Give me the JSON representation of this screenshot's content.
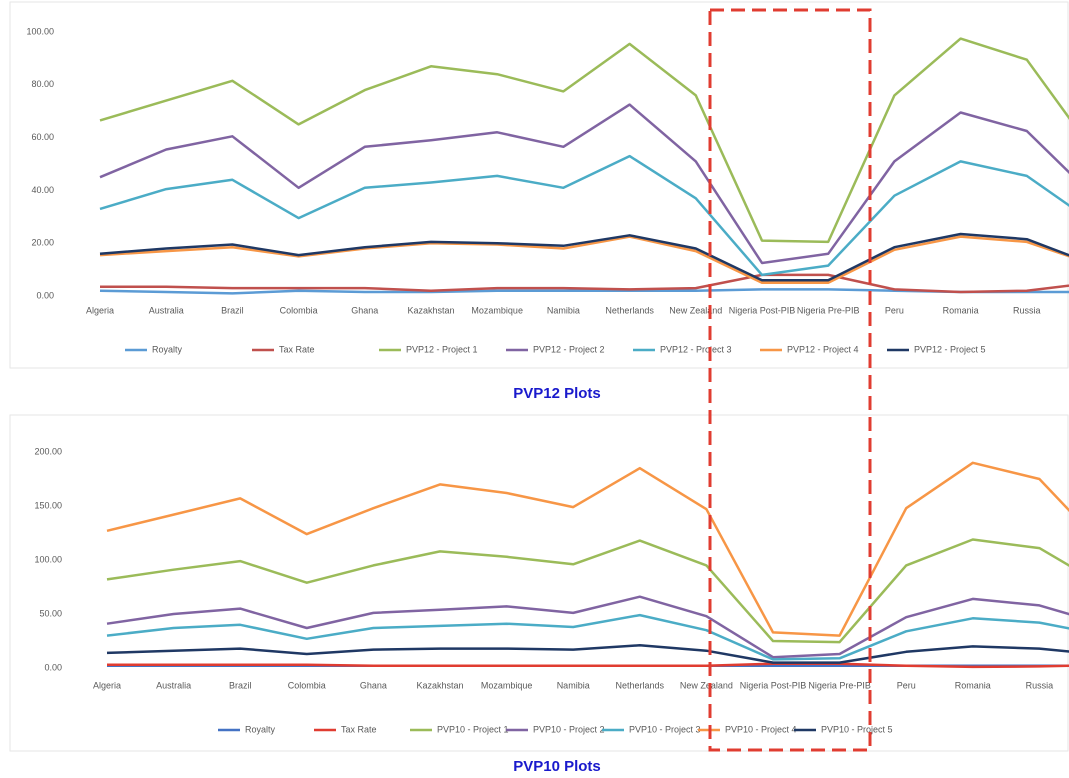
{
  "chart_data": [
    {
      "type": "line",
      "title": "PVP12 Plots",
      "categories": [
        "Algeria",
        "Australia",
        "Brazil",
        "Colombia",
        "Ghana",
        "Kazakhstan",
        "Mozambique",
        "Namibia",
        "Netherlands",
        "New Zealand",
        "Nigeria Post-PIB",
        "Nigeria Pre-PIB",
        "Peru",
        "Romania",
        "Russia",
        null
      ],
      "ylim": [
        0,
        100
      ],
      "yticks": [
        {
          "value": 0,
          "label": "0.00"
        },
        {
          "value": 20,
          "label": "20.00"
        },
        {
          "value": 40,
          "label": "40.00"
        },
        {
          "value": 60,
          "label": "60.00"
        },
        {
          "value": 80,
          "label": "80.00"
        },
        {
          "value": 100,
          "label": "100.00"
        }
      ],
      "grid": false,
      "series": [
        {
          "name": "Royalty",
          "color": "#5b9bd5",
          "values": [
            2,
            1.5,
            1,
            2,
            1.5,
            1.5,
            2,
            2,
            2,
            2,
            2.5,
            2.5,
            2,
            1.5,
            1.5,
            1.5
          ]
        },
        {
          "name": "Tax Rate",
          "color": "#c0504d",
          "values": [
            3.5,
            3.5,
            3,
            3,
            3,
            2,
            3,
            3,
            2.5,
            3,
            8,
            8,
            2.5,
            1.5,
            2,
            5
          ]
        },
        {
          "name": "PVP12 - Project 1",
          "color": "#9bbb59",
          "values": [
            66.5,
            74,
            81.5,
            65,
            78,
            87,
            84,
            77.5,
            95.5,
            76,
            21,
            20.5,
            76,
            97.5,
            89.5,
            55
          ]
        },
        {
          "name": "PVP12 - Project 2",
          "color": "#8064a2",
          "values": [
            45,
            55.5,
            60.5,
            41,
            56.5,
            59,
            62,
            56.5,
            72.5,
            51,
            12.5,
            16,
            51,
            69.5,
            62.5,
            38
          ]
        },
        {
          "name": "PVP12 - Project 3",
          "color": "#4bacc6",
          "values": [
            33,
            40.5,
            44,
            29.5,
            41,
            43,
            45.5,
            41,
            53,
            37,
            8,
            11.5,
            38,
            51,
            45.5,
            28
          ]
        },
        {
          "name": "PVP12 - Project 4",
          "color": "#f79646",
          "values": [
            15.5,
            17,
            18.5,
            15,
            18,
            20,
            19.5,
            18,
            22.5,
            17,
            5,
            5,
            17.5,
            22.5,
            20.5,
            12
          ]
        },
        {
          "name": "PVP12 - Project 5",
          "color": "#1f3864",
          "values": [
            16,
            18,
            19.5,
            15.5,
            18.5,
            20.5,
            20,
            19,
            23,
            18,
            6,
            6,
            18.5,
            23.5,
            21.5,
            12
          ]
        }
      ]
    },
    {
      "type": "line",
      "title": "PVP10 Plots",
      "categories": [
        "Algeria",
        "Australia",
        "Brazil",
        "Colombia",
        "Ghana",
        "Kazakhstan",
        "Mozambique",
        "Namibia",
        "Netherlands",
        "New Zealand",
        "Nigeria Post-PIB",
        "Nigeria Pre-PIB",
        "Peru",
        "Romania",
        "Russia",
        null
      ],
      "ylim": [
        0,
        200
      ],
      "yticks": [
        {
          "value": 0,
          "label": "0.00"
        },
        {
          "value": 50,
          "label": "50.00"
        },
        {
          "value": 100,
          "label": "100.00"
        },
        {
          "value": 150,
          "label": "150.00"
        },
        {
          "value": 200,
          "label": "200.00"
        }
      ],
      "grid": false,
      "series": [
        {
          "name": "Royalty",
          "color": "#4472c4",
          "values": [
            2,
            2,
            2,
            2,
            2,
            2,
            2,
            2,
            2,
            2,
            2,
            2,
            2,
            2,
            2,
            2
          ]
        },
        {
          "name": "Tax Rate",
          "color": "#e03c31",
          "values": [
            3,
            3,
            3,
            3,
            2,
            2,
            2,
            2,
            2,
            2,
            4,
            4,
            2,
            1,
            1.5,
            3
          ]
        },
        {
          "name": "PVP10 - Project 1",
          "color": "#9bbb59",
          "values": [
            82,
            91,
            99,
            79,
            95,
            108,
            103,
            96,
            118,
            95,
            25,
            24,
            95,
            119,
            111,
            75
          ]
        },
        {
          "name": "PVP10 - Project 2",
          "color": "#8064a2",
          "values": [
            41,
            50,
            55,
            37,
            51,
            54,
            57,
            51,
            66,
            48,
            10,
            13,
            47,
            64,
            58,
            40
          ]
        },
        {
          "name": "PVP10 - Project 3",
          "color": "#4bacc6",
          "values": [
            30,
            37,
            40,
            27,
            37,
            39,
            41,
            38,
            49,
            35,
            8,
            9,
            34,
            46,
            42,
            30
          ]
        },
        {
          "name": "PVP10 - Project 4",
          "color": "#f79646",
          "values": [
            127,
            142,
            157,
            124,
            148,
            170,
            162,
            149,
            185,
            147,
            33,
            30,
            148,
            190,
            175,
            110
          ]
        },
        {
          "name": "PVP10 - Project 5",
          "color": "#1f3864",
          "values": [
            14,
            16,
            18,
            13,
            17,
            18,
            18,
            17,
            21,
            16,
            5,
            5,
            15,
            20,
            18,
            12
          ]
        }
      ]
    }
  ]
}
